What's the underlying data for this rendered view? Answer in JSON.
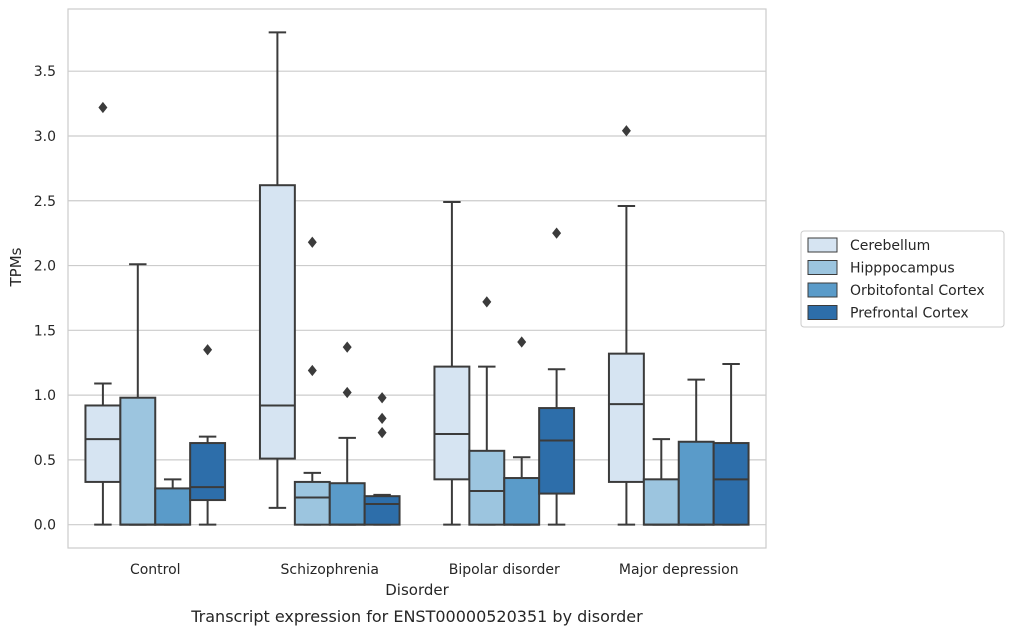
{
  "caption": "Transcript expression for ENST00000520351 by disorder",
  "chart_data": {
    "type": "box",
    "title": "",
    "xlabel": "Disorder",
    "ylabel": "TPMs",
    "ylim": [
      -0.18,
      3.98
    ],
    "yticks": [
      "0.0",
      "0.5",
      "1.0",
      "1.5",
      "2.0",
      "2.5",
      "3.0",
      "3.5"
    ],
    "grid": "horizontal",
    "legend_position": "right",
    "categories": [
      "Control",
      "Schizophrenia",
      "Bipolar disorder",
      "Major depression"
    ],
    "series": [
      {
        "name": "Cerebellum",
        "color": "#d6e4f2",
        "boxes": [
          {
            "whisker_low": 0.0,
            "q1": 0.33,
            "median": 0.66,
            "q3": 0.92,
            "whisker_high": 1.09,
            "outliers": [
              3.22
            ]
          },
          {
            "whisker_low": 0.13,
            "q1": 0.51,
            "median": 0.92,
            "q3": 2.62,
            "whisker_high": 3.8,
            "outliers": []
          },
          {
            "whisker_low": 0.0,
            "q1": 0.35,
            "median": 0.7,
            "q3": 1.22,
            "whisker_high": 2.49,
            "outliers": []
          },
          {
            "whisker_low": 0.0,
            "q1": 0.33,
            "median": 0.93,
            "q3": 1.32,
            "whisker_high": 2.46,
            "outliers": [
              3.04
            ]
          }
        ]
      },
      {
        "name": "Hipppocampus",
        "color": "#9cc5df",
        "boxes": [
          {
            "whisker_low": 0.0,
            "q1": 0.0,
            "median": 0.0,
            "q3": 0.98,
            "whisker_high": 2.01,
            "outliers": []
          },
          {
            "whisker_low": 0.0,
            "q1": 0.0,
            "median": 0.21,
            "q3": 0.33,
            "whisker_high": 0.4,
            "outliers": [
              2.18,
              1.19
            ]
          },
          {
            "whisker_low": 0.0,
            "q1": 0.0,
            "median": 0.26,
            "q3": 0.57,
            "whisker_high": 1.22,
            "outliers": [
              1.72
            ]
          },
          {
            "whisker_low": 0.0,
            "q1": 0.0,
            "median": 0.0,
            "q3": 0.35,
            "whisker_high": 0.66,
            "outliers": []
          }
        ]
      },
      {
        "name": "Orbitofontal Cortex",
        "color": "#5a9bc9",
        "boxes": [
          {
            "whisker_low": 0.0,
            "q1": 0.0,
            "median": 0.0,
            "q3": 0.28,
            "whisker_high": 0.35,
            "outliers": []
          },
          {
            "whisker_low": 0.0,
            "q1": 0.0,
            "median": 0.0,
            "q3": 0.32,
            "whisker_high": 0.67,
            "outliers": [
              1.37,
              1.02
            ]
          },
          {
            "whisker_low": 0.0,
            "q1": 0.0,
            "median": 0.0,
            "q3": 0.36,
            "whisker_high": 0.52,
            "outliers": [
              1.41
            ]
          },
          {
            "whisker_low": 0.0,
            "q1": 0.0,
            "median": 0.0,
            "q3": 0.64,
            "whisker_high": 1.12,
            "outliers": []
          }
        ]
      },
      {
        "name": "Prefrontal Cortex",
        "color": "#2d6eaa",
        "boxes": [
          {
            "whisker_low": 0.0,
            "q1": 0.19,
            "median": 0.29,
            "q3": 0.63,
            "whisker_high": 0.68,
            "outliers": [
              1.35
            ]
          },
          {
            "whisker_low": 0.0,
            "q1": 0.0,
            "median": 0.16,
            "q3": 0.22,
            "whisker_high": 0.23,
            "outliers": [
              0.98,
              0.82,
              0.71
            ]
          },
          {
            "whisker_low": 0.0,
            "q1": 0.24,
            "median": 0.65,
            "q3": 0.9,
            "whisker_high": 1.2,
            "outliers": [
              2.25
            ]
          },
          {
            "whisker_low": 0.0,
            "q1": 0.0,
            "median": 0.35,
            "q3": 0.63,
            "whisker_high": 1.24,
            "outliers": []
          }
        ]
      }
    ]
  }
}
